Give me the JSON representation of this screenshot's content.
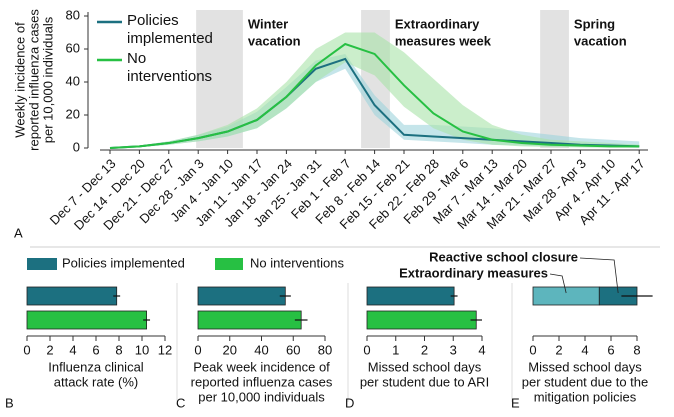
{
  "chart_data": [
    {
      "type": "line",
      "panel": "A",
      "ylabel": [
        "Weekly incidence of",
        "reported influenza cases",
        "per 10,000 individuals"
      ],
      "categories": [
        "Dec 7 - Dec 13",
        "Dec 14 - Dec 20",
        "Dec 21 - Dec 27",
        "Dec 28 - Jan 3",
        "Jan 4 - Jan 10",
        "Jan 11 - Jan 17",
        "Jan 18 - Jan 24",
        "Jan 25 - Jan 31",
        "Feb 1 - Feb 7",
        "Feb 8 - Feb 14",
        "Feb 15 - Feb 21",
        "Feb 22 - Feb 28",
        "Feb 29 - Mar 6",
        "Mar 7 - Mar 13",
        "Mar 14 - Mar 20",
        "Mar 21 - Mar 27",
        "Mar 28 - Apr 3",
        "Apr 4 - Apr 10",
        "Apr 11 - Apr 17"
      ],
      "series": [
        {
          "name": "Policies implemented",
          "color": "#1c7080",
          "band_color": "#9fd3dc",
          "values": [
            0,
            1,
            3,
            6,
            10,
            17,
            31,
            48,
            54,
            26,
            8,
            7,
            6,
            5,
            4,
            3,
            2,
            1.5,
            1
          ],
          "lower": [
            0,
            0.5,
            2,
            4,
            7,
            12,
            24,
            40,
            48,
            20,
            5,
            4,
            3,
            2,
            1.5,
            1,
            0.5,
            0.3,
            0.2
          ],
          "upper": [
            0,
            1.5,
            4,
            8,
            13,
            22,
            37,
            53,
            57,
            32,
            14,
            14,
            13,
            12,
            10,
            8,
            6,
            5,
            4
          ]
        },
        {
          "name": "No interventions",
          "color": "#27c043",
          "band_color": "#a8e2a8",
          "values": [
            0,
            1,
            3,
            6,
            10,
            17,
            31,
            50,
            63,
            57,
            38,
            21,
            10,
            5,
            3,
            2,
            1.5,
            1,
            1
          ],
          "lower": [
            0,
            0.5,
            2,
            4,
            7,
            12,
            24,
            40,
            52,
            44,
            25,
            12,
            5,
            2,
            1,
            0.5,
            0.3,
            0.2,
            0.2
          ],
          "upper": [
            0,
            1.5,
            4,
            8,
            14,
            24,
            40,
            60,
            70,
            70,
            58,
            42,
            26,
            14,
            8,
            5,
            4,
            3,
            2
          ]
        }
      ],
      "ylim": [
        0,
        80
      ],
      "yticks": [
        0,
        20,
        40,
        60,
        80
      ],
      "legend": "upper left",
      "shaded_regions": [
        {
          "lines": [
            "Winter",
            "vacation"
          ],
          "start": 2.93,
          "end": 4.52
        },
        {
          "lines": [
            "Extraordinary",
            "measures week"
          ],
          "start": 8.54,
          "end": 9.52
        },
        {
          "lines": [
            "Spring",
            "vacation"
          ],
          "start": 14.63,
          "end": 15.61
        }
      ]
    },
    {
      "type": "hbar_group",
      "series": [
        {
          "name": "Policies implemented",
          "color": "#1c7080"
        },
        {
          "name": "No interventions",
          "color": "#27c043"
        }
      ],
      "panels": [
        {
          "panel": "B",
          "xlabel": [
            "Influenza clinical",
            "attack rate (%)"
          ],
          "xlim": [
            0,
            12
          ],
          "xticks": [
            0,
            2,
            4,
            6,
            8,
            10,
            12
          ],
          "values": [
            7.8,
            10.4
          ],
          "errors": [
            0.3,
            0.3
          ]
        },
        {
          "panel": "C",
          "xlabel": [
            "Peak week incidence of",
            "reported influenza cases",
            "per 10,000 individuals"
          ],
          "xlim": [
            0,
            80
          ],
          "xticks": [
            0,
            20,
            40,
            60,
            80
          ],
          "values": [
            55,
            65
          ],
          "errors": [
            3.5,
            4
          ]
        },
        {
          "panel": "D",
          "xlabel": [
            "Missed school days",
            "per student due to ARI"
          ],
          "xlim": [
            0,
            4
          ],
          "xticks": [
            0,
            1,
            2,
            3,
            4
          ],
          "values": [
            3.03,
            3.8
          ],
          "errors": [
            0.12,
            0.2
          ]
        },
        {
          "panel": "E",
          "xlabel": [
            "Missed school days",
            "per student due to the",
            "mitigation policies"
          ],
          "xlim": [
            0,
            8
          ],
          "xticks": [
            0,
            2,
            4,
            6,
            8
          ],
          "segments": [
            {
              "name": "Extraordinary measures",
              "color": "#5db5bd",
              "values": [
                5.1,
                0
              ]
            },
            {
              "name": "Reactive school closure",
              "color": "#1c7080",
              "values": [
                2.9,
                0
              ]
            }
          ],
          "errors": [
            1.2,
            0
          ]
        }
      ]
    }
  ]
}
